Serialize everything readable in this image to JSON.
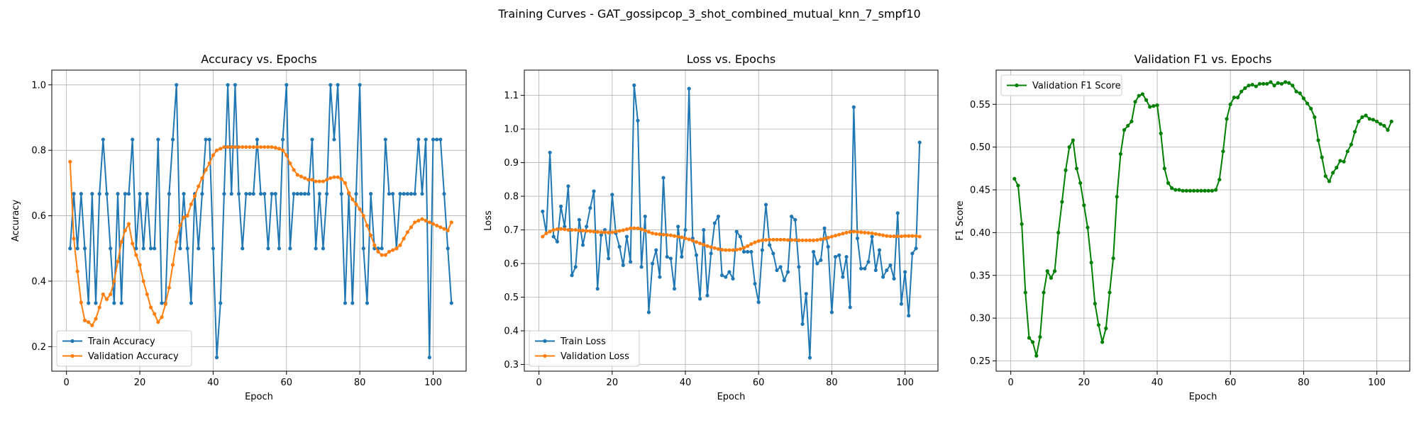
{
  "suptitle": "Training Curves - GAT_gossipcop_3_shot_combined_mutual_knn_7_smpf10",
  "chart_data": [
    {
      "type": "line",
      "title": "Accuracy vs. Epochs",
      "xlabel": "Epoch",
      "ylabel": "Accuracy",
      "xlim": [
        -4,
        109
      ],
      "ylim": [
        0.125,
        1.045
      ],
      "xticks": [
        0,
        20,
        40,
        60,
        80,
        100
      ],
      "yticks": [
        0.2,
        0.4,
        0.6,
        0.8,
        1.0
      ],
      "ytick_labels": [
        "0.2",
        "0.4",
        "0.6",
        "0.8",
        "1.0"
      ],
      "grid": true,
      "legend_loc": "lower-left",
      "series": [
        {
          "name": "Train Accuracy",
          "color": "#1f77b4",
          "x_start": 1,
          "values": [
            0.5,
            0.667,
            0.5,
            0.667,
            0.5,
            0.333,
            0.667,
            0.333,
            0.667,
            0.833,
            0.667,
            0.5,
            0.333,
            0.667,
            0.333,
            0.667,
            0.667,
            0.833,
            0.5,
            0.667,
            0.5,
            0.667,
            0.5,
            0.5,
            0.833,
            0.333,
            0.333,
            0.667,
            0.833,
            1.0,
            0.5,
            0.667,
            0.5,
            0.333,
            0.667,
            0.5,
            0.667,
            0.833,
            0.833,
            0.5,
            0.167,
            0.333,
            0.667,
            1.0,
            0.667,
            1.0,
            0.667,
            0.5,
            0.667,
            0.667,
            0.667,
            0.833,
            0.667,
            0.667,
            0.5,
            0.667,
            0.667,
            0.5,
            0.833,
            1.0,
            0.5,
            0.667,
            0.667,
            0.667,
            0.667,
            0.667,
            0.833,
            0.5,
            0.667,
            0.5,
            0.667,
            1.0,
            0.833,
            1.0,
            0.667,
            0.333,
            0.667,
            0.333,
            0.667,
            1.0,
            0.5,
            0.333,
            0.667,
            0.5,
            0.5,
            0.5,
            0.833,
            0.667,
            0.667,
            0.5,
            0.667,
            0.667,
            0.667,
            0.667,
            0.667,
            0.833,
            0.667,
            0.833,
            0.167,
            0.833,
            0.833,
            0.833,
            0.667,
            0.5,
            0.333
          ]
        },
        {
          "name": "Validation Accuracy",
          "color": "#ff7f0e",
          "x_start": 1,
          "values": [
            0.765,
            0.53,
            0.43,
            0.335,
            0.28,
            0.275,
            0.265,
            0.285,
            0.32,
            0.36,
            0.345,
            0.36,
            0.4,
            0.46,
            0.52,
            0.555,
            0.575,
            0.515,
            0.48,
            0.45,
            0.4,
            0.36,
            0.32,
            0.3,
            0.275,
            0.29,
            0.33,
            0.38,
            0.45,
            0.52,
            0.57,
            0.595,
            0.6,
            0.635,
            0.66,
            0.69,
            0.715,
            0.74,
            0.76,
            0.785,
            0.8,
            0.805,
            0.81,
            0.81,
            0.81,
            0.81,
            0.81,
            0.81,
            0.81,
            0.81,
            0.81,
            0.81,
            0.81,
            0.81,
            0.81,
            0.81,
            0.808,
            0.805,
            0.8,
            0.785,
            0.76,
            0.74,
            0.725,
            0.72,
            0.715,
            0.71,
            0.71,
            0.705,
            0.705,
            0.705,
            0.71,
            0.715,
            0.718,
            0.718,
            0.712,
            0.7,
            0.67,
            0.65,
            0.635,
            0.62,
            0.6,
            0.57,
            0.54,
            0.51,
            0.49,
            0.48,
            0.48,
            0.49,
            0.495,
            0.5,
            0.51,
            0.53,
            0.55,
            0.565,
            0.58,
            0.585,
            0.59,
            0.585,
            0.58,
            0.575,
            0.57,
            0.565,
            0.56,
            0.555,
            0.58
          ]
        }
      ]
    },
    {
      "type": "line",
      "title": "Loss vs. Epochs",
      "xlabel": "Epoch",
      "ylabel": "Loss",
      "xlim": [
        -4,
        109
      ],
      "ylim": [
        0.28,
        1.175
      ],
      "xticks": [
        0,
        20,
        40,
        60,
        80,
        100
      ],
      "yticks": [
        0.3,
        0.4,
        0.5,
        0.6,
        0.7,
        0.8,
        0.9,
        1.0,
        1.1
      ],
      "ytick_labels": [
        "0.3",
        "0.4",
        "0.5",
        "0.6",
        "0.7",
        "0.8",
        "0.9",
        "1.0",
        "1.1"
      ],
      "grid": true,
      "legend_loc": "lower-left",
      "series": [
        {
          "name": "Train Loss",
          "color": "#1f77b4",
          "x_start": 1,
          "values": [
            0.755,
            0.69,
            0.93,
            0.68,
            0.665,
            0.77,
            0.71,
            0.83,
            0.565,
            0.59,
            0.73,
            0.655,
            0.71,
            0.765,
            0.815,
            0.525,
            0.685,
            0.7,
            0.615,
            0.805,
            0.69,
            0.65,
            0.595,
            0.68,
            0.605,
            1.13,
            1.025,
            0.59,
            0.74,
            0.455,
            0.6,
            0.64,
            0.56,
            0.855,
            0.62,
            0.615,
            0.525,
            0.71,
            0.62,
            0.7,
            1.12,
            0.675,
            0.625,
            0.495,
            0.7,
            0.505,
            0.63,
            0.72,
            0.74,
            0.565,
            0.56,
            0.575,
            0.555,
            0.695,
            0.68,
            0.635,
            0.635,
            0.635,
            0.54,
            0.485,
            0.64,
            0.775,
            0.655,
            0.63,
            0.58,
            0.59,
            0.55,
            0.575,
            0.74,
            0.73,
            0.59,
            0.42,
            0.51,
            0.32,
            0.635,
            0.6,
            0.61,
            0.705,
            0.65,
            0.455,
            0.62,
            0.625,
            0.56,
            0.62,
            0.47,
            1.065,
            0.675,
            0.585,
            0.585,
            0.605,
            0.68,
            0.58,
            0.64,
            0.56,
            0.58,
            0.595,
            0.555,
            0.75,
            0.48,
            0.575,
            0.445,
            0.63,
            0.645,
            0.96
          ]
        },
        {
          "name": "Validation Loss",
          "color": "#ff7f0e",
          "x_start": 1,
          "values": [
            0.68,
            0.69,
            0.695,
            0.7,
            0.702,
            0.703,
            0.702,
            0.7,
            0.7,
            0.7,
            0.698,
            0.698,
            0.697,
            0.696,
            0.695,
            0.694,
            0.693,
            0.693,
            0.692,
            0.693,
            0.695,
            0.697,
            0.699,
            0.702,
            0.705,
            0.705,
            0.705,
            0.702,
            0.698,
            0.694,
            0.69,
            0.688,
            0.687,
            0.686,
            0.685,
            0.684,
            0.682,
            0.68,
            0.678,
            0.675,
            0.672,
            0.668,
            0.664,
            0.66,
            0.656,
            0.652,
            0.649,
            0.646,
            0.643,
            0.641,
            0.64,
            0.64,
            0.64,
            0.641,
            0.643,
            0.647,
            0.652,
            0.658,
            0.663,
            0.667,
            0.669,
            0.67,
            0.671,
            0.671,
            0.671,
            0.671,
            0.671,
            0.67,
            0.67,
            0.67,
            0.669,
            0.669,
            0.669,
            0.669,
            0.669,
            0.67,
            0.672,
            0.674,
            0.677,
            0.68,
            0.683,
            0.686,
            0.689,
            0.692,
            0.694,
            0.695,
            0.694,
            0.693,
            0.692,
            0.691,
            0.69,
            0.688,
            0.686,
            0.684,
            0.682,
            0.681,
            0.681,
            0.681,
            0.681,
            0.682,
            0.682,
            0.682,
            0.682,
            0.68
          ]
        }
      ]
    },
    {
      "type": "line",
      "title": "Validation F1 vs. Epochs",
      "xlabel": "Epoch",
      "ylabel": "F1 Score",
      "xlim": [
        -4,
        109
      ],
      "ylim": [
        0.238,
        0.59
      ],
      "xticks": [
        0,
        20,
        40,
        60,
        80,
        100
      ],
      "yticks": [
        0.25,
        0.3,
        0.35,
        0.4,
        0.45,
        0.5,
        0.55
      ],
      "ytick_labels": [
        "0.25",
        "0.30",
        "0.35",
        "0.40",
        "0.45",
        "0.50",
        "0.55"
      ],
      "grid": true,
      "legend_loc": "upper-left",
      "series": [
        {
          "name": "Validation F1 Score",
          "color": "#008000",
          "x_start": 1,
          "values": [
            0.463,
            0.455,
            0.41,
            0.33,
            0.277,
            0.272,
            0.256,
            0.278,
            0.33,
            0.355,
            0.347,
            0.355,
            0.4,
            0.436,
            0.473,
            0.5,
            0.508,
            0.475,
            0.458,
            0.432,
            0.406,
            0.365,
            0.317,
            0.292,
            0.272,
            0.288,
            0.33,
            0.37,
            0.442,
            0.492,
            0.52,
            0.525,
            0.53,
            0.553,
            0.56,
            0.562,
            0.555,
            0.547,
            0.548,
            0.549,
            0.516,
            0.475,
            0.458,
            0.452,
            0.45,
            0.45,
            0.449,
            0.449,
            0.449,
            0.449,
            0.449,
            0.449,
            0.449,
            0.449,
            0.449,
            0.45,
            0.462,
            0.495,
            0.533,
            0.55,
            0.558,
            0.558,
            0.565,
            0.569,
            0.572,
            0.573,
            0.571,
            0.574,
            0.574,
            0.574,
            0.576,
            0.572,
            0.575,
            0.574,
            0.576,
            0.575,
            0.572,
            0.565,
            0.563,
            0.557,
            0.551,
            0.545,
            0.535,
            0.508,
            0.488,
            0.466,
            0.46,
            0.47,
            0.476,
            0.484,
            0.483,
            0.495,
            0.503,
            0.518,
            0.53,
            0.535,
            0.537,
            0.533,
            0.532,
            0.53,
            0.527,
            0.525,
            0.52,
            0.53
          ]
        }
      ]
    }
  ]
}
